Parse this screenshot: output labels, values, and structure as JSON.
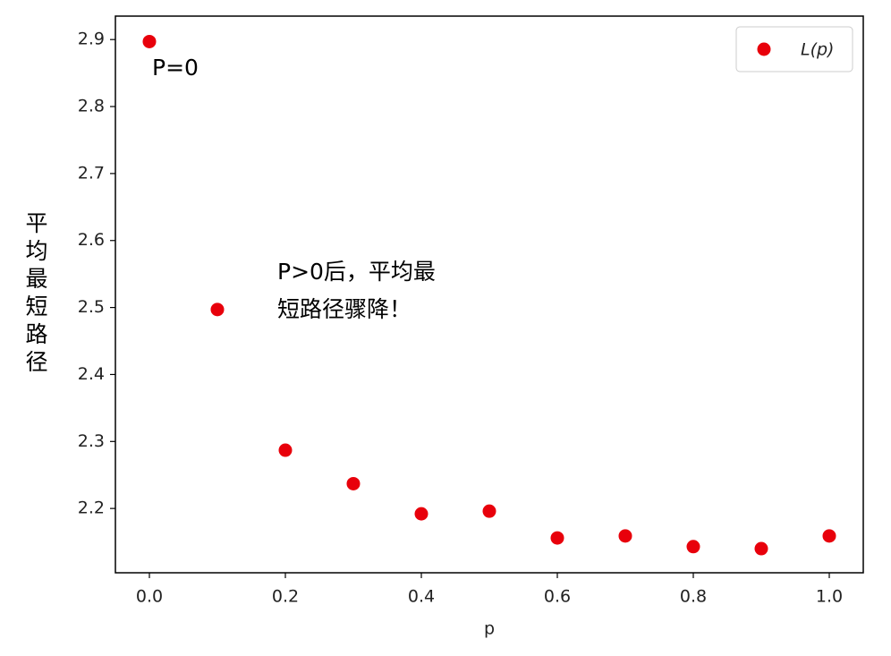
{
  "chart_data": {
    "type": "scatter",
    "x_label": "p",
    "y_label": "平均最短路径",
    "annotations": [
      "P=0",
      "P>0后，平均最",
      "短路径骤降！"
    ],
    "series": [
      {
        "name": "L(p)",
        "color": "#e8000b",
        "x": [
          0,
          0.1,
          0.2,
          0.3,
          0.4,
          0.5,
          0.6,
          0.7,
          0.8,
          0.9,
          1.0
        ],
        "values": [
          2.897,
          2.497,
          2.287,
          2.237,
          2.192,
          2.196,
          2.156,
          2.159,
          2.143,
          2.14,
          2.159
        ]
      }
    ],
    "xlim": [
      -0.05,
      1.05
    ],
    "ylim": [
      2.104,
      2.935
    ],
    "xticks": [
      {
        "value": 0,
        "label": "0.0"
      },
      0.2,
      0.4,
      0.6,
      0.8,
      {
        "value": 1,
        "label": "1.0"
      }
    ],
    "yticks": [
      2.2,
      2.3,
      2.4,
      2.5,
      2.6,
      2.7,
      2.8,
      2.9
    ],
    "legend": "upper right",
    "grid": false
  }
}
